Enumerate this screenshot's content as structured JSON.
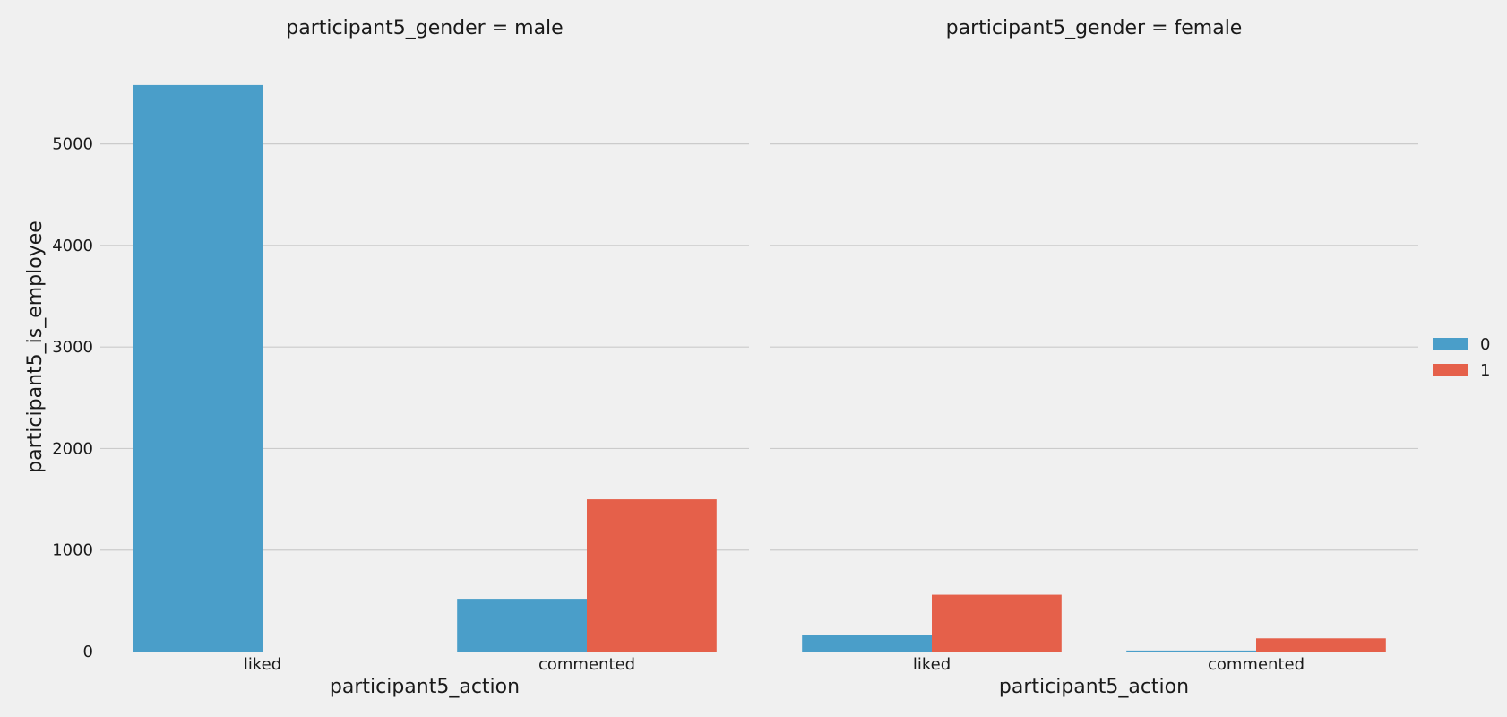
{
  "chart_data": {
    "type": "bar",
    "layout": "facet-columns",
    "ylabel": "participant5_is_employee",
    "ylim": [
      0,
      5800
    ],
    "yticks": [
      "0",
      "1000",
      "2000",
      "3000",
      "4000",
      "5000"
    ],
    "grid": true,
    "legend": {
      "placement": "right",
      "entries": [
        {
          "label": "0",
          "color": "#4a9ec9"
        },
        {
          "label": "1",
          "color": "#e5604a"
        }
      ]
    },
    "panels": [
      {
        "title": "participant5_gender = male",
        "xlabel": "participant5_action",
        "categories": [
          "liked",
          "commented"
        ],
        "series": [
          {
            "name": "0",
            "values": [
              5580,
              520
            ]
          },
          {
            "name": "1",
            "values": [
              0,
              1500
            ]
          }
        ]
      },
      {
        "title": "participant5_gender = female",
        "xlabel": "participant5_action",
        "categories": [
          "liked",
          "commented"
        ],
        "series": [
          {
            "name": "0",
            "values": [
              160,
              10
            ]
          },
          {
            "name": "1",
            "values": [
              560,
              130
            ]
          }
        ]
      }
    ]
  }
}
